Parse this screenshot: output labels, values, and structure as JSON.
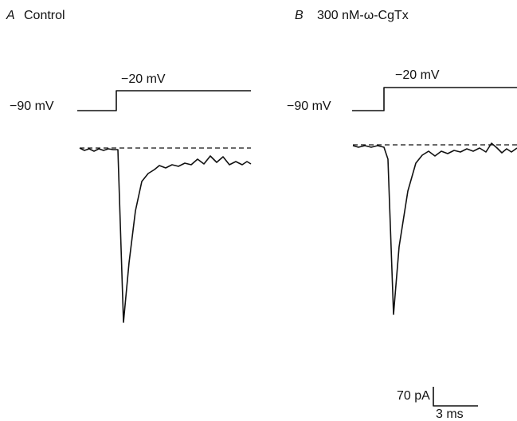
{
  "panels": [
    {
      "letter": "A",
      "title": "Control",
      "holding": "−90 mV",
      "step": "−20 mV"
    },
    {
      "letter": "B",
      "title": "300 nM-ω-CgTx",
      "holding": "−90 mV",
      "step": "−20 mV"
    }
  ],
  "scale_bar": {
    "current": "70 pA",
    "time": "3 ms"
  }
}
